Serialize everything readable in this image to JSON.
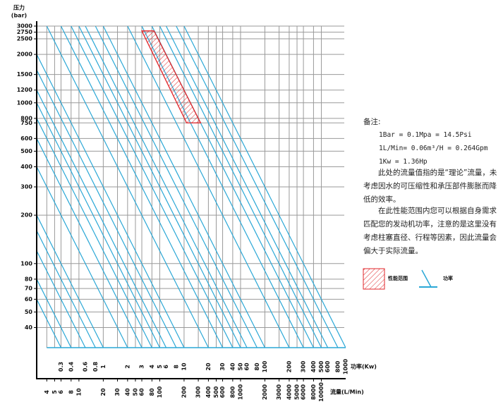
{
  "chart_data": {
    "type": "nomogram",
    "y_label": "压力",
    "y_unit": "(bar)",
    "x_label": "流量(L/Min)",
    "power_label": "功率(Kw)",
    "log_x": true,
    "log_y": true,
    "grid": true,
    "grid_color": "#9a9a9a",
    "xlim": [
      3,
      20000
    ],
    "ylim": [
      30,
      3000
    ],
    "yticks": [
      40,
      50,
      60,
      70,
      80,
      100,
      200,
      300,
      400,
      500,
      600,
      750,
      800,
      1000,
      1200,
      1500,
      2000,
      2500,
      2750,
      3000
    ],
    "xticks": [
      4,
      5,
      6,
      8,
      10,
      20,
      30,
      40,
      50,
      60,
      80,
      100,
      200,
      300,
      400,
      500,
      600,
      800,
      1000,
      2000,
      3000,
      4000,
      5000,
      6000,
      8000,
      10000
    ],
    "power_ticks": [
      0.3,
      0.4,
      0.6,
      0.8,
      1,
      2,
      3,
      4,
      5,
      6,
      8,
      10,
      20,
      30,
      40,
      50,
      60,
      80,
      100,
      200,
      300,
      400,
      500,
      600,
      800,
      1000
    ],
    "power_color": "#2aa7d6",
    "performance_range": {
      "flow": [
        60,
        85,
        320,
        215
      ],
      "pressure": [
        2800,
        2800,
        750,
        750
      ],
      "color": "#e0262a"
    }
  },
  "notes": {
    "title": "备注:",
    "lines": [
      "1Bar = 0.1Mpa = 14.5Psi",
      "1L/Min= 0.06m³/H = 0.264Gpm",
      "1Kw = 1.36Hp"
    ],
    "paragraphs": [
      "此处的流量值指的是“理论”流量，未考虑因水的可压缩性和承压部件膨胀而降低的效率。",
      "在此性能范围内您可以根据自身需求匹配您的发动机功率，注意的是这里没有考虑柱塞直径、行程等因素，因此流量会偏大于实际流量。"
    ]
  },
  "legend": {
    "performance_range": "性能范围",
    "power": "功率"
  }
}
